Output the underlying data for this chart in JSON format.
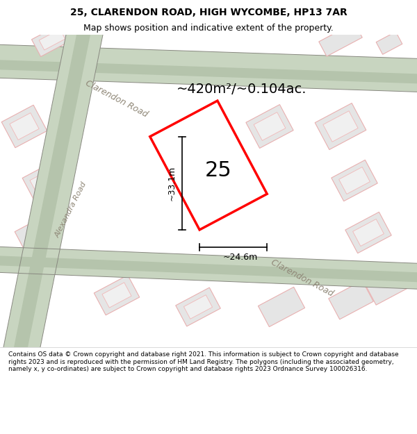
{
  "title": "25, CLARENDON ROAD, HIGH WYCOMBE, HP13 7AR",
  "subtitle": "Map shows position and indicative extent of the property.",
  "footer": "Contains OS data © Crown copyright and database right 2021. This information is subject to Crown copyright and database rights 2023 and is reproduced with the permission of HM Land Registry. The polygons (including the associated geometry, namely x, y co-ordinates) are subject to Crown copyright and database rights 2023 Ordnance Survey 100026316.",
  "area_label": "~420m²/~0.104ac.",
  "width_label": "~24.6m",
  "height_label": "~33.1m",
  "number_label": "25",
  "map_bg": "#f7f5f2",
  "road_color_green": "#c8d5c0",
  "road_stripe_color": "#b5c4ac",
  "highlight_fill": "#ffffff",
  "highlight_outline": "#ff0000",
  "title_fontsize": 10,
  "subtitle_fontsize": 9,
  "footer_fontsize": 6.5,
  "number_fontsize": 22,
  "tilt": 28
}
